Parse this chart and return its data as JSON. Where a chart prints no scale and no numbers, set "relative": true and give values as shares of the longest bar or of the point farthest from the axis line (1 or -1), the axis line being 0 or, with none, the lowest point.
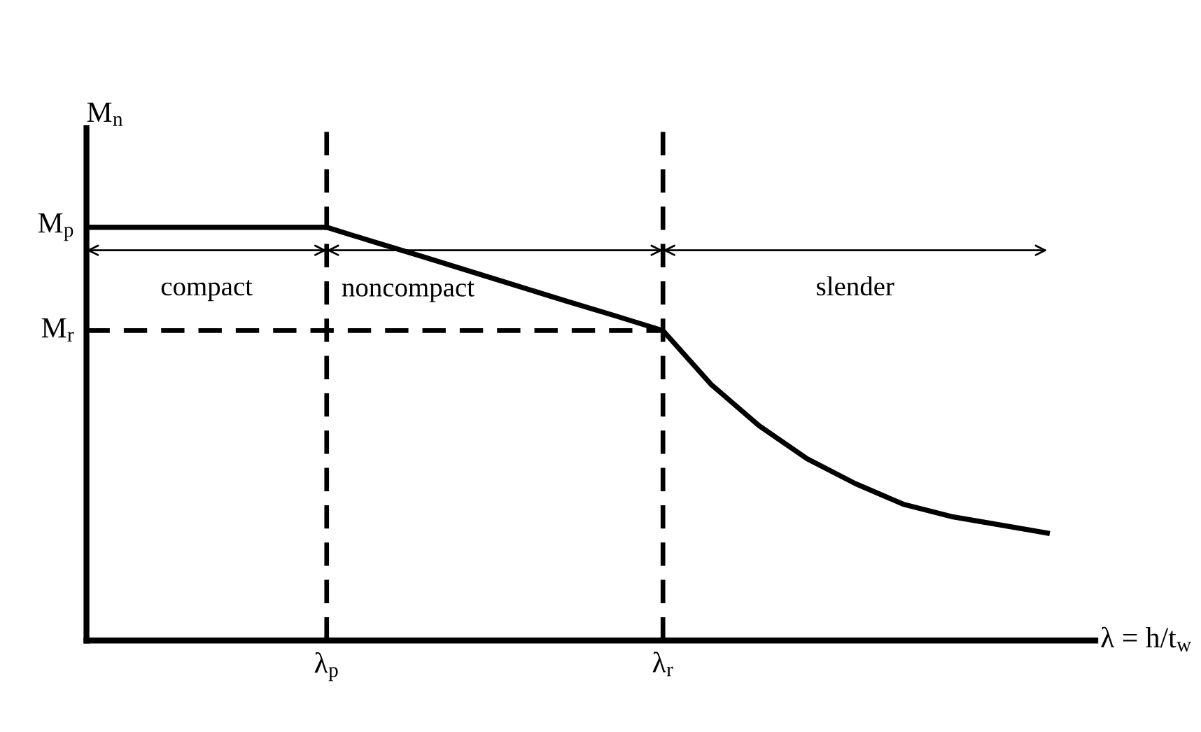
{
  "chart_data": {
    "type": "line",
    "relative": true,
    "ylabel": "M$_{n}$",
    "xlabel": "λ = h/t$_{w}$",
    "categories": [
      null,
      null,
      null,
      null,
      null,
      "λ$_{p}$",
      null,
      null,
      null,
      null,
      null,
      null,
      "λ$_{r}$",
      null,
      null,
      null,
      null,
      null,
      null,
      null,
      null
    ],
    "series": [
      {
        "color": "#000000",
        "values": [
          1,
          1,
          1,
          1,
          1,
          1,
          0.964,
          0.929,
          0.893,
          0.857,
          0.821,
          0.786,
          0.75,
          0.62,
          0.52,
          0.44,
          0.38,
          0.33,
          0.3,
          0.28,
          0.26
        ]
      }
    ],
    "ref_lines": [
      {
        "axis": "x",
        "value": "λ$_{p}$",
        "line_style": "dashed",
        "color": "#000000"
      },
      {
        "axis": "x",
        "value": "λ$_{r}$",
        "line_style": "dashed",
        "color": "#000000"
      },
      {
        "axis": "y",
        "value": 1,
        "label": "M$_{p}$",
        "line_style": "solid",
        "color": "#000000"
      },
      {
        "axis": "y",
        "value": 0.75,
        "label": "M$_{r}$",
        "line_style": "dashed",
        "color": "#000000"
      }
    ],
    "annotations": [
      "compact",
      "noncompact",
      "slender"
    ],
    "grid": false,
    "legend": false,
    "marker": "none",
    "line_style": "solid"
  }
}
